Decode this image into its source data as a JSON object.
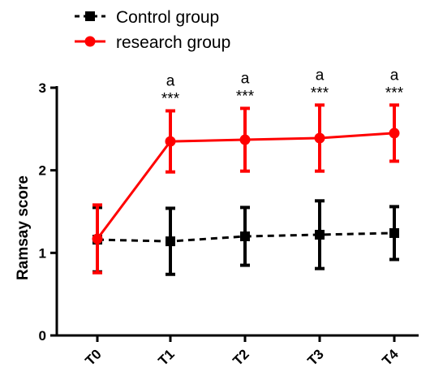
{
  "chart_data": {
    "type": "line",
    "title": "",
    "xlabel": "",
    "ylabel": "Ramsay score",
    "categories": [
      "T0",
      "T1",
      "T2",
      "T3",
      "T4"
    ],
    "ylim": [
      0,
      3
    ],
    "yticks": [
      "0",
      "1",
      "2",
      "3"
    ],
    "grid": false,
    "legend_position": "top-left",
    "series": [
      {
        "name": "Control group",
        "color": "#000000",
        "line_style": "dashed",
        "marker": "square",
        "values": [
          1.16,
          1.14,
          1.2,
          1.22,
          1.24
        ],
        "errors": [
          0.39,
          0.4,
          0.35,
          0.41,
          0.32
        ]
      },
      {
        "name": "research group",
        "color": "#ff0000",
        "line_style": "solid",
        "marker": "circle",
        "values": [
          1.17,
          2.35,
          2.37,
          2.39,
          2.45
        ],
        "errors": [
          0.41,
          0.37,
          0.38,
          0.4,
          0.34
        ]
      }
    ],
    "annotations": [
      {
        "category": "T1",
        "letter": "a",
        "stars": "***"
      },
      {
        "category": "T2",
        "letter": "a",
        "stars": "***"
      },
      {
        "category": "T3",
        "letter": "a",
        "stars": "***"
      },
      {
        "category": "T4",
        "letter": "a",
        "stars": "***"
      }
    ]
  }
}
